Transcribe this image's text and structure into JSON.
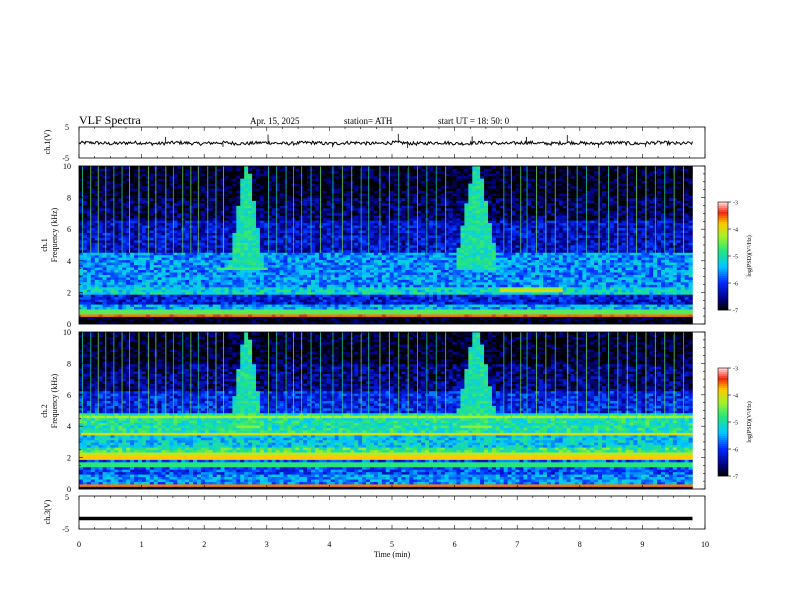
{
  "header": {
    "title": "VLF  Spectra",
    "date": "Apr. 15, 2025",
    "station": "station= ATH",
    "start": "start  UT  =    18: 50: 0"
  },
  "chart_data": [
    {
      "type": "line",
      "panel": "ch1-waveform",
      "ylabel": "ch.1(V)",
      "ylim": [
        -5,
        5
      ],
      "yticks": [
        "5",
        "-5"
      ],
      "xlim": [
        0,
        10
      ],
      "x_end": 9.8,
      "baseline": -0.2,
      "spikes": [
        [
          1.38,
          1.8
        ],
        [
          2.3,
          -1.4
        ],
        [
          3.02,
          2.6
        ],
        [
          4.05,
          -1.5
        ],
        [
          5.1,
          2.8
        ],
        [
          5.25,
          -1.8
        ],
        [
          6.28,
          2.0
        ],
        [
          7.15,
          1.8
        ],
        [
          7.8,
          2.4
        ],
        [
          8.3,
          -1.7
        ],
        [
          9.05,
          -1.4
        ]
      ],
      "color": "#000000"
    },
    {
      "type": "heatmap",
      "panel": "ch1-spectrogram",
      "ylabel_top": "ch.1",
      "ylabel": "Frequency  (kHz)",
      "ylim": [
        0,
        10
      ],
      "yticks": [
        "0",
        "2",
        "4",
        "6",
        "8",
        "10"
      ],
      "xlim": [
        0,
        10
      ],
      "x_end": 9.8,
      "colorbar": {
        "label": "log(PSD)(V²/Hz)",
        "ticks": [
          "-3",
          "-4",
          "-5",
          "-6",
          "-7"
        ],
        "range": [
          -7,
          -3
        ]
      },
      "bands": [
        {
          "f": [
            0.0,
            0.45
          ],
          "level": -7.0
        },
        {
          "f": [
            0.45,
            0.6
          ],
          "level": -3.8
        },
        {
          "f": [
            0.6,
            1.2
          ],
          "level": -5.5
        },
        {
          "f": [
            1.2,
            1.8
          ],
          "level": -6.2
        },
        {
          "f": [
            1.8,
            2.4
          ],
          "level": -5.2
        },
        {
          "f": [
            2.4,
            4.6
          ],
          "level": -5.6
        },
        {
          "f": [
            4.6,
            6.5
          ],
          "level": -6.3
        },
        {
          "f": [
            6.5,
            8.0
          ],
          "level": -6.7
        },
        {
          "f": [
            8.0,
            10.0
          ],
          "level": -6.9
        }
      ],
      "lines": [
        {
          "f": 0.55,
          "level": -3.6,
          "t": [
            0,
            9.8
          ]
        },
        {
          "f": 0.75,
          "level": -4.6,
          "t": [
            0,
            9.8
          ]
        },
        {
          "f": 2.1,
          "level": -4.0,
          "t": [
            6.7,
            7.7
          ]
        },
        {
          "f": 2.3,
          "level": -4.4,
          "t": [
            6.7,
            7.7
          ]
        },
        {
          "f": 3.5,
          "level": -4.7,
          "t": [
            2.2,
            3.0
          ]
        },
        {
          "f": 4.0,
          "level": -4.9,
          "t": [
            2.5,
            2.9
          ]
        },
        {
          "f": 4.0,
          "level": -4.9,
          "t": [
            6.1,
            6.6
          ]
        }
      ],
      "bursts": [
        {
          "t": [
            2.4,
            2.95
          ],
          "f": [
            3.5,
            10
          ],
          "level": -5.0
        },
        {
          "t": [
            6.0,
            6.7
          ],
          "f": [
            3.5,
            10
          ],
          "level": -5.0
        }
      ],
      "sferics": [
        0.05,
        0.18,
        0.3,
        0.42,
        0.55,
        0.68,
        0.8,
        0.95,
        1.1,
        1.22,
        1.38,
        1.5,
        1.65,
        1.78,
        1.9,
        2.05,
        2.18,
        2.3,
        3.02,
        3.15,
        3.3,
        3.42,
        3.55,
        3.7,
        3.85,
        4.05,
        4.2,
        4.35,
        4.5,
        4.62,
        4.8,
        4.95,
        5.1,
        5.25,
        5.4,
        5.55,
        5.7,
        5.85,
        6.78,
        6.9,
        7.05,
        7.15,
        7.3,
        7.45,
        7.6,
        7.8,
        7.95,
        8.1,
        8.3,
        8.45,
        8.6,
        8.75,
        8.9,
        9.05,
        9.2,
        9.35,
        9.5,
        9.65
      ]
    },
    {
      "type": "heatmap",
      "panel": "ch2-spectrogram",
      "ylabel_top": "ch.2",
      "ylabel": "Frequency  (kHz)",
      "ylim": [
        0,
        10
      ],
      "yticks": [
        "0",
        "2",
        "4",
        "6",
        "8",
        "10"
      ],
      "xlim": [
        0,
        10
      ],
      "x_end": 9.8,
      "colorbar": {
        "label": "log(PSD)(V²/Hz)",
        "ticks": [
          "-3",
          "-4",
          "-5",
          "-6",
          "-7"
        ],
        "range": [
          -7,
          -3
        ]
      },
      "bands": [
        {
          "f": [
            0.0,
            0.2
          ],
          "level": -7.0
        },
        {
          "f": [
            0.2,
            1.0
          ],
          "level": -5.6
        },
        {
          "f": [
            1.0,
            1.8
          ],
          "level": -5.9
        },
        {
          "f": [
            1.8,
            2.6
          ],
          "level": -4.8
        },
        {
          "f": [
            2.6,
            3.4
          ],
          "level": -5.3
        },
        {
          "f": [
            3.4,
            4.8
          ],
          "level": -5.0
        },
        {
          "f": [
            4.8,
            6.2
          ],
          "level": -6.1
        },
        {
          "f": [
            6.2,
            8.0
          ],
          "level": -6.6
        },
        {
          "f": [
            8.0,
            10.0
          ],
          "level": -6.9
        }
      ],
      "lines": [
        {
          "f": 0.25,
          "level": -3.6,
          "t": [
            0,
            9.8
          ]
        },
        {
          "f": 2.0,
          "level": -3.8,
          "t": [
            0,
            9.8
          ]
        },
        {
          "f": 2.2,
          "level": -4.2,
          "t": [
            0,
            9.8
          ]
        },
        {
          "f": 3.5,
          "level": -4.0,
          "t": [
            0,
            9.8
          ]
        },
        {
          "f": 4.6,
          "level": -4.3,
          "t": [
            0,
            9.8
          ]
        },
        {
          "f": 1.6,
          "level": -4.8,
          "t": [
            0,
            9.8
          ]
        },
        {
          "f": 4.0,
          "level": -4.4,
          "t": [
            2.5,
            2.9
          ]
        },
        {
          "f": 4.0,
          "level": -4.4,
          "t": [
            6.1,
            6.6
          ]
        }
      ],
      "bursts": [
        {
          "t": [
            2.4,
            2.95
          ],
          "f": [
            3.8,
            10
          ],
          "level": -5.0
        },
        {
          "t": [
            6.0,
            6.7
          ],
          "f": [
            3.8,
            10
          ],
          "level": -5.0
        }
      ],
      "sferics": [
        0.05,
        0.18,
        0.3,
        0.42,
        0.55,
        0.68,
        0.8,
        0.95,
        1.1,
        1.22,
        1.38,
        1.5,
        1.65,
        1.78,
        1.9,
        2.05,
        2.18,
        2.3,
        3.02,
        3.15,
        3.3,
        3.42,
        3.55,
        3.7,
        3.85,
        4.05,
        4.2,
        4.35,
        4.5,
        4.62,
        4.8,
        4.95,
        5.1,
        5.25,
        5.4,
        5.55,
        5.7,
        5.85,
        6.78,
        6.9,
        7.05,
        7.15,
        7.3,
        7.45,
        7.6,
        7.8,
        7.95,
        8.1,
        8.3,
        8.45,
        8.6,
        8.75,
        8.9,
        9.05,
        9.2,
        9.35,
        9.5,
        9.65
      ]
    },
    {
      "type": "line",
      "panel": "ch3-waveform",
      "ylabel": "ch.3(V)",
      "ylim": [
        -5,
        5
      ],
      "yticks": [
        "5",
        "0",
        "-5"
      ],
      "xlim": [
        0,
        10
      ],
      "x_end": 9.8,
      "baseline": -1.8,
      "xlabel": "Time  (min)",
      "xticks": [
        "0",
        "1",
        "2",
        "3",
        "4",
        "5",
        "6",
        "7",
        "8",
        "9",
        "10"
      ],
      "color": "#000000"
    }
  ]
}
